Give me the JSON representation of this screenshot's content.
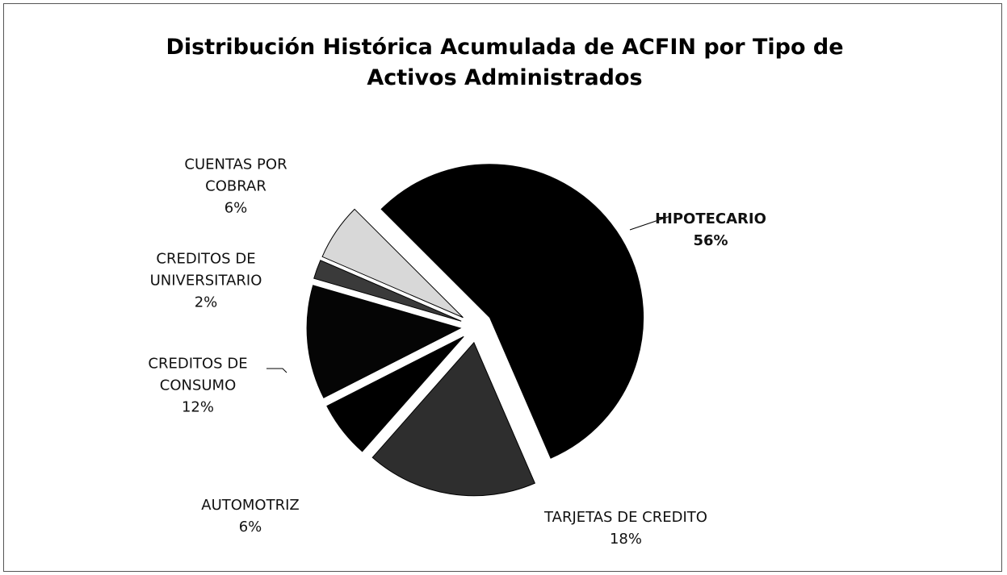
{
  "chart_data": {
    "type": "pie",
    "title": "Distribución Histórica Acumulada de ACFIN por Tipo de Activos Administrados",
    "categories": [
      "HIPOTECARIO",
      "TARJETAS DE CREDITO",
      "AUTOMOTRIZ",
      "CREDITOS DE CONSUMO",
      "CREDITOS DE UNIVERSITARIO",
      "CUENTAS POR COBRAR"
    ],
    "values": [
      56,
      18,
      6,
      12,
      2,
      6
    ],
    "value_labels": [
      "56%",
      "18%",
      "6%",
      "12%",
      "2%",
      "6%"
    ],
    "colors": [
      "#000000",
      "#2e2e2e",
      "#000000",
      "#050505",
      "#3a3a3a",
      "#d8d8d8"
    ]
  }
}
